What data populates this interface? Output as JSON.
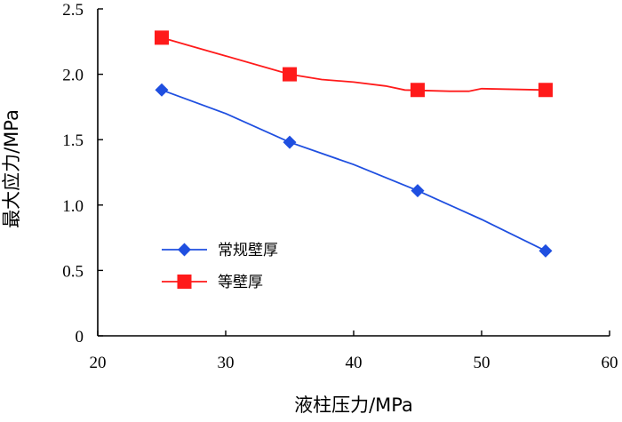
{
  "chart_data": {
    "type": "line",
    "title": "",
    "xlabel": "液柱压力/MPa",
    "ylabel": "最大应力/MPa",
    "xlim": [
      20,
      60
    ],
    "ylim": [
      0,
      2.5
    ],
    "x_ticks": [
      "20",
      "30",
      "40",
      "50",
      "60"
    ],
    "y_ticks": [
      "0",
      "0.5",
      "1.0",
      "1.5",
      "2.0",
      "2.5"
    ],
    "grid": false,
    "legend_position": "lower-left",
    "series": [
      {
        "name": "常规壁厚",
        "color": "#1f4fe0",
        "marker": "diamond",
        "points": [
          [
            25,
            1.88
          ],
          [
            35,
            1.48
          ],
          [
            45,
            1.11
          ],
          [
            55,
            0.65
          ]
        ],
        "line": [
          [
            25,
            1.88
          ],
          [
            30,
            1.7
          ],
          [
            35,
            1.48
          ],
          [
            40,
            1.31
          ],
          [
            45,
            1.11
          ],
          [
            47.5,
            1.0
          ],
          [
            50,
            0.89
          ],
          [
            55,
            0.65
          ]
        ]
      },
      {
        "name": "等壁厚",
        "color": "#ff1a1a",
        "marker": "square",
        "points": [
          [
            25,
            2.28
          ],
          [
            35,
            2.0
          ],
          [
            45,
            1.88
          ],
          [
            55,
            1.88
          ]
        ],
        "line": [
          [
            25,
            2.28
          ],
          [
            27.5,
            2.21
          ],
          [
            30,
            2.14
          ],
          [
            35,
            2.0
          ],
          [
            37.5,
            1.96
          ],
          [
            40,
            1.94
          ],
          [
            42.5,
            1.91
          ],
          [
            44,
            1.88
          ],
          [
            47.5,
            1.87
          ],
          [
            49,
            1.87
          ],
          [
            50,
            1.89
          ],
          [
            55,
            1.88
          ]
        ]
      }
    ]
  }
}
